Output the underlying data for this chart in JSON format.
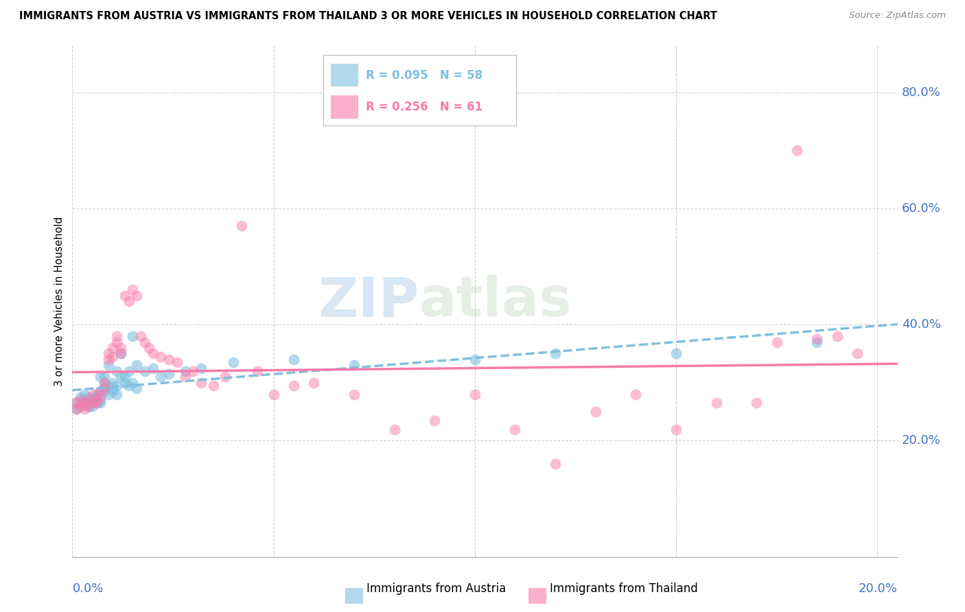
{
  "title": "IMMIGRANTS FROM AUSTRIA VS IMMIGRANTS FROM THAILAND 3 OR MORE VEHICLES IN HOUSEHOLD CORRELATION CHART",
  "source": "Source: ZipAtlas.com",
  "ylabel": "3 or more Vehicles in Household",
  "ytick_values": [
    0.2,
    0.4,
    0.6,
    0.8
  ],
  "xtick_values": [
    0.0,
    0.05,
    0.1,
    0.15,
    0.2
  ],
  "xmin": 0.0,
  "xmax": 0.205,
  "ymin": 0.0,
  "ymax": 0.88,
  "austria_color": "#7fbfdf",
  "thailand_color": "#f87aaa",
  "austria_x": [
    0.001,
    0.001,
    0.002,
    0.002,
    0.003,
    0.003,
    0.003,
    0.004,
    0.004,
    0.004,
    0.005,
    0.005,
    0.005,
    0.005,
    0.006,
    0.006,
    0.006,
    0.006,
    0.007,
    0.007,
    0.007,
    0.007,
    0.008,
    0.008,
    0.008,
    0.008,
    0.009,
    0.009,
    0.009,
    0.01,
    0.01,
    0.01,
    0.011,
    0.011,
    0.011,
    0.012,
    0.012,
    0.013,
    0.013,
    0.014,
    0.014,
    0.015,
    0.015,
    0.016,
    0.016,
    0.018,
    0.02,
    0.022,
    0.024,
    0.028,
    0.032,
    0.04,
    0.055,
    0.07,
    0.1,
    0.12,
    0.15,
    0.185
  ],
  "austria_y": [
    0.265,
    0.255,
    0.275,
    0.26,
    0.28,
    0.27,
    0.265,
    0.275,
    0.265,
    0.258,
    0.27,
    0.268,
    0.272,
    0.26,
    0.28,
    0.265,
    0.27,
    0.275,
    0.31,
    0.285,
    0.27,
    0.265,
    0.29,
    0.285,
    0.3,
    0.31,
    0.295,
    0.28,
    0.33,
    0.29,
    0.285,
    0.3,
    0.32,
    0.295,
    0.28,
    0.35,
    0.31,
    0.31,
    0.3,
    0.32,
    0.295,
    0.38,
    0.3,
    0.33,
    0.29,
    0.32,
    0.325,
    0.31,
    0.315,
    0.32,
    0.325,
    0.335,
    0.34,
    0.33,
    0.34,
    0.35,
    0.35,
    0.37
  ],
  "thailand_x": [
    0.001,
    0.001,
    0.002,
    0.002,
    0.003,
    0.003,
    0.004,
    0.004,
    0.005,
    0.005,
    0.006,
    0.006,
    0.007,
    0.007,
    0.008,
    0.008,
    0.009,
    0.009,
    0.01,
    0.01,
    0.011,
    0.011,
    0.012,
    0.012,
    0.013,
    0.014,
    0.015,
    0.016,
    0.017,
    0.018,
    0.019,
    0.02,
    0.022,
    0.024,
    0.026,
    0.028,
    0.03,
    0.032,
    0.035,
    0.038,
    0.042,
    0.046,
    0.05,
    0.055,
    0.06,
    0.07,
    0.08,
    0.09,
    0.1,
    0.11,
    0.12,
    0.13,
    0.14,
    0.15,
    0.16,
    0.17,
    0.175,
    0.18,
    0.185,
    0.19,
    0.195
  ],
  "thailand_y": [
    0.255,
    0.265,
    0.27,
    0.26,
    0.265,
    0.255,
    0.27,
    0.26,
    0.28,
    0.265,
    0.27,
    0.265,
    0.285,
    0.275,
    0.3,
    0.29,
    0.35,
    0.34,
    0.36,
    0.345,
    0.38,
    0.37,
    0.36,
    0.35,
    0.45,
    0.44,
    0.46,
    0.45,
    0.38,
    0.37,
    0.36,
    0.35,
    0.345,
    0.34,
    0.335,
    0.31,
    0.32,
    0.3,
    0.295,
    0.31,
    0.57,
    0.32,
    0.28,
    0.295,
    0.3,
    0.28,
    0.22,
    0.235,
    0.28,
    0.22,
    0.16,
    0.25,
    0.28,
    0.22,
    0.265,
    0.265,
    0.37,
    0.7,
    0.375,
    0.38,
    0.35
  ]
}
